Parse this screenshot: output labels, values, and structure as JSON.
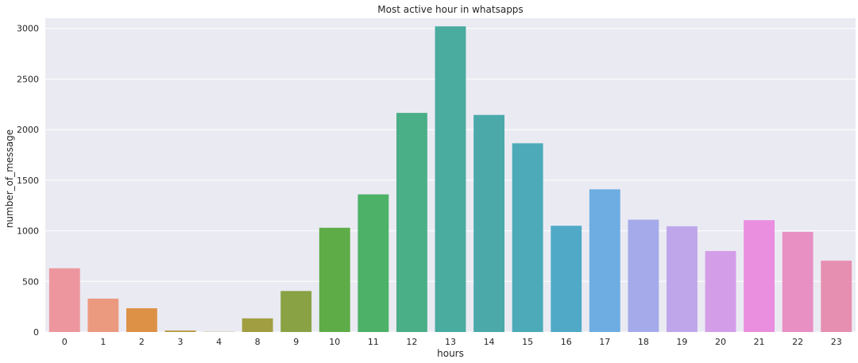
{
  "chart_data": {
    "type": "bar",
    "title": "Most active hour in whatsapps",
    "xlabel": "hours",
    "ylabel": "number_of_message",
    "categories": [
      "0",
      "1",
      "2",
      "3",
      "4",
      "8",
      "9",
      "10",
      "11",
      "12",
      "13",
      "14",
      "15",
      "16",
      "17",
      "18",
      "19",
      "20",
      "21",
      "22",
      "23"
    ],
    "values": [
      630,
      330,
      235,
      15,
      2,
      135,
      405,
      1030,
      1360,
      2165,
      3020,
      2145,
      1865,
      1050,
      1410,
      1110,
      1045,
      800,
      1105,
      990,
      705
    ],
    "colors": [
      "#ed969e",
      "#eb9a80",
      "#dd9146",
      "#b79a45",
      "#a89c45",
      "#a19e42",
      "#88a244",
      "#5eac47",
      "#4db168",
      "#4aae87",
      "#4aab9f",
      "#4ba9aa",
      "#4daab8",
      "#50aac7",
      "#6dade2",
      "#a5aaea",
      "#bfa6ea",
      "#d49de8",
      "#ea8ee0",
      "#e88fc4",
      "#e68fb1"
    ],
    "ylim": [
      0,
      3100
    ],
    "yticks": [
      0,
      500,
      1000,
      1500,
      2000,
      2500,
      3000
    ],
    "grid": true,
    "background": "#eaeaf2",
    "grid_color": "#ffffff"
  }
}
